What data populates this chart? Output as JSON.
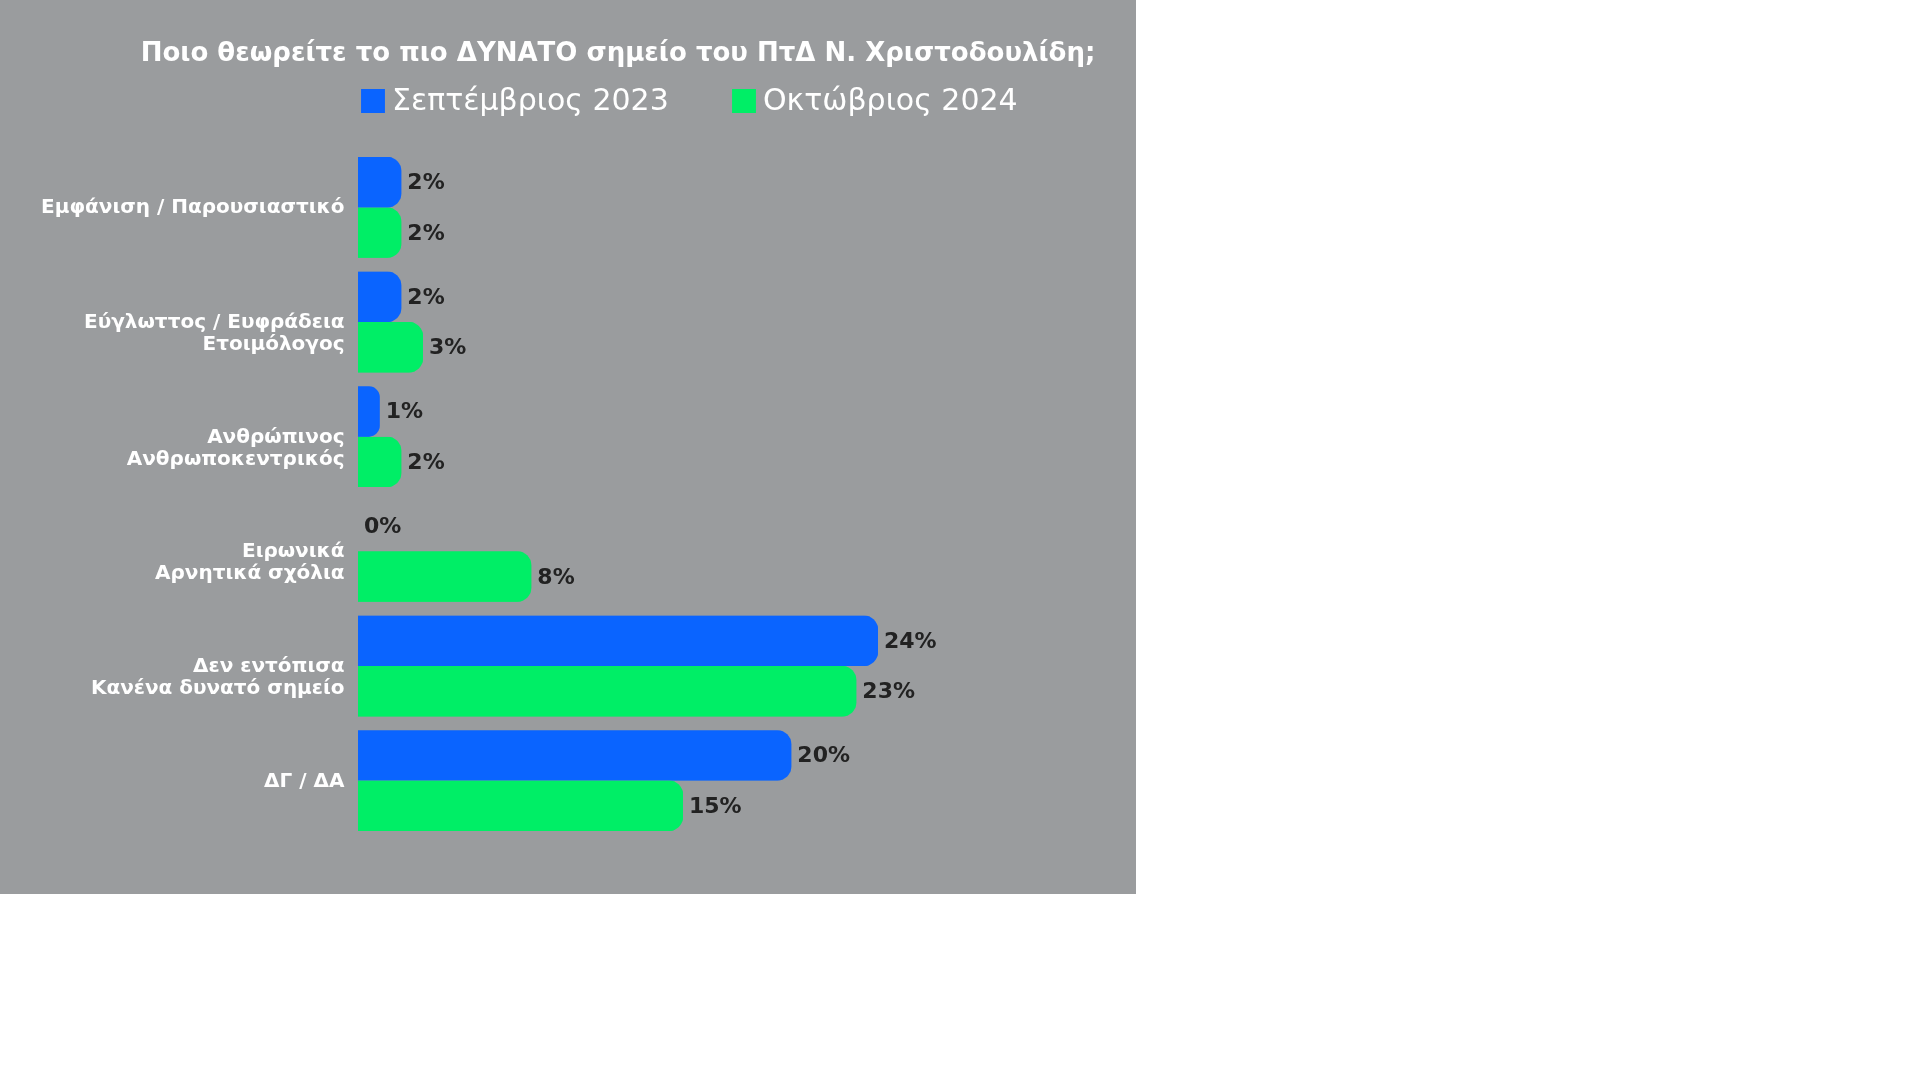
{
  "chart_data": {
    "type": "bar",
    "orientation": "horizontal",
    "title": "Ποιο θεωρείτε το πιο ΔΥΝΑΤΟ σημείο του ΠτΔ Ν. Χριστοδουλίδη;",
    "categories": [
      "Εμφάνιση / Παρουσιαστικό",
      "Εύγλωττος / Ευφράδεια\nΕτοιμόλογος",
      "Ανθρώπινος\nΑνθρωποκεντρικός",
      "Ειρωνικά\nΑρνητικά σχόλια",
      "Δεν εντόπισα\nΚανένα δυνατό σημείο",
      "ΔΓ / ΔΑ"
    ],
    "series": [
      {
        "name": "Σεπτέμβριος 2023",
        "color": "#0a64ff",
        "values": [
          2,
          2,
          1,
          0,
          24,
          20
        ],
        "value_labels": [
          "2%",
          "2%",
          "1%",
          "0%",
          "24%",
          "20%"
        ]
      },
      {
        "name": "Οκτώβριος 2024",
        "color": "#00ee66",
        "values": [
          2,
          3,
          2,
          8,
          23,
          15
        ],
        "value_labels": [
          "2%",
          "3%",
          "2%",
          "8%",
          "23%",
          "15%"
        ]
      }
    ],
    "legend": "top",
    "tick_labels": "y",
    "grid": false
  }
}
